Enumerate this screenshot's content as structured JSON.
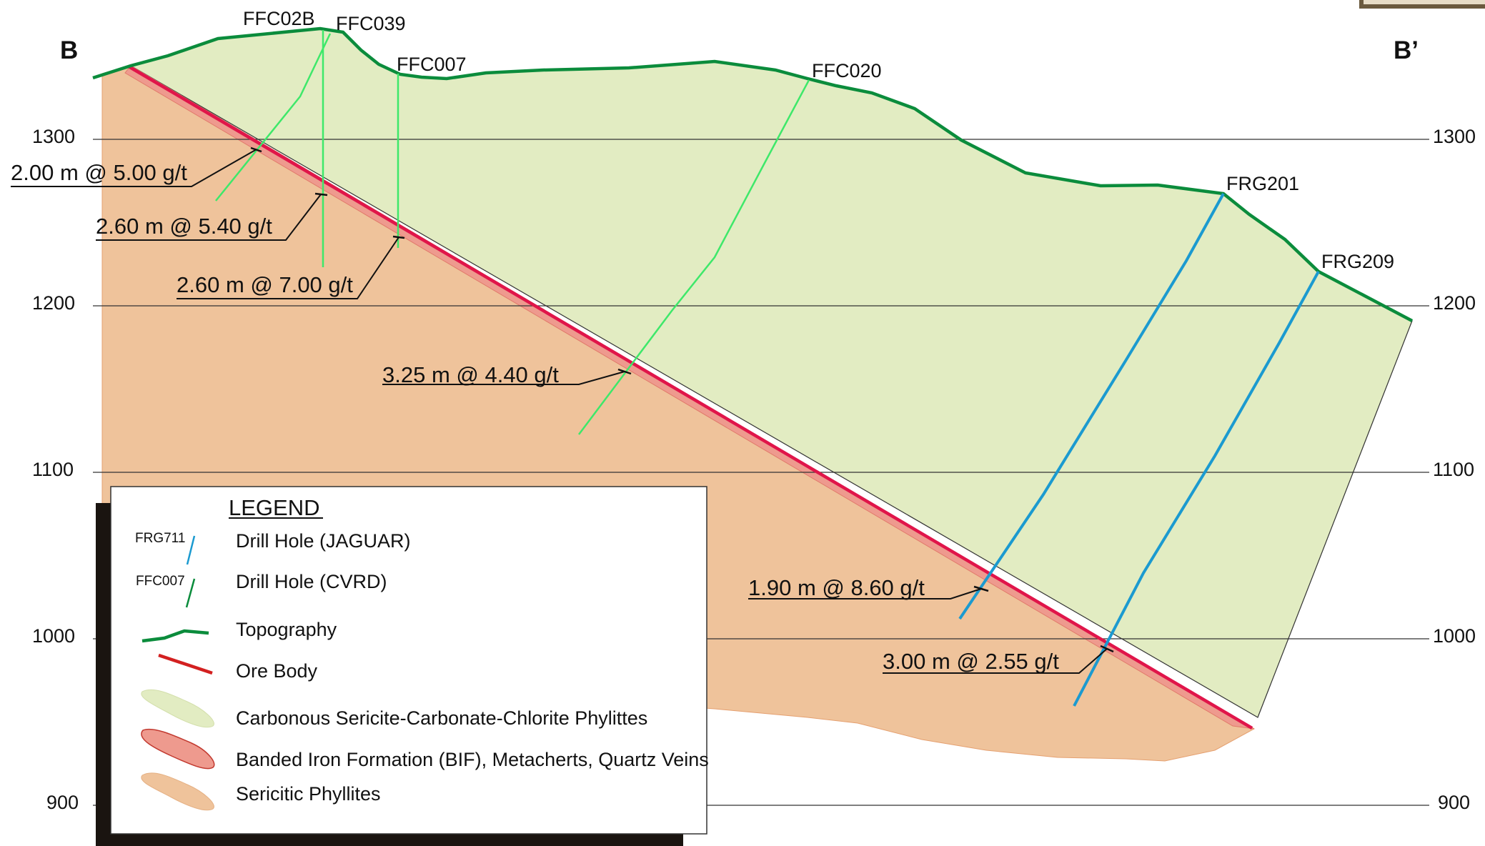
{
  "section": {
    "start_label": "B",
    "end_label": "B’"
  },
  "elevation_ticks": [
    "1300",
    "1200",
    "1100",
    "1000",
    "900"
  ],
  "drill_holes": [
    {
      "id": "FFC02B",
      "type": "CVRD"
    },
    {
      "id": "FFC039",
      "type": "CVRD"
    },
    {
      "id": "FFC007",
      "type": "CVRD"
    },
    {
      "id": "FFC020",
      "type": "CVRD"
    },
    {
      "id": "FRG201",
      "type": "JAGUAR"
    },
    {
      "id": "FRG209",
      "type": "JAGUAR"
    }
  ],
  "intercepts": [
    "2.00 m @ 5.00 g/t",
    "2.60 m @ 5.40 g/t",
    "2.60 m @ 7.00 g/t",
    "3.25 m @ 4.40 g/t",
    "1.90 m @ 8.60 g/t",
    "3.00 m @ 2.55 g/t"
  ],
  "legend": {
    "title": "LEGEND",
    "items": [
      {
        "sample_label": "FRG711",
        "label": "Drill Hole (JAGUAR)"
      },
      {
        "sample_label": "FFC007",
        "label": "Drill Hole (CVRD)"
      },
      {
        "label": "Topography"
      },
      {
        "label": "Ore Body"
      },
      {
        "label": "Carbonous Sericite-Carbonate-Chlorite Phylittes"
      },
      {
        "label": "Banded Iron Formation (BIF), Metacherts, Quartz Veins"
      },
      {
        "label": "Sericitic Phyllites"
      }
    ]
  },
  "colors": {
    "sericitic_phyllites": "#efc39b",
    "carbonous_phyllites": "#e2ecc2",
    "bif": "#ee9a8e",
    "ore_body": "#e0154a",
    "topography": "#0b8c3c",
    "drill_cvrd": "#3ee86a",
    "drill_jaguar": "#1b9ad0",
    "gridline": "#333333"
  }
}
